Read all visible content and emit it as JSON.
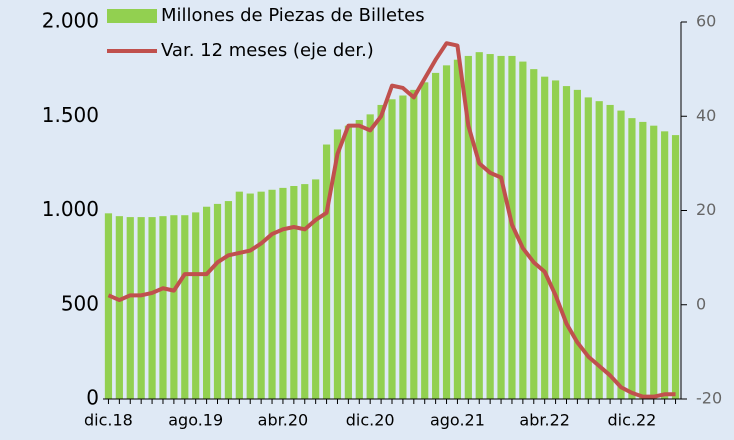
{
  "chart_data": {
    "type": "bar_line",
    "categories": [
      "dic.18",
      null,
      null,
      null,
      null,
      null,
      null,
      null,
      "ago.19",
      null,
      null,
      null,
      null,
      null,
      null,
      null,
      "abr.20",
      null,
      null,
      null,
      null,
      null,
      null,
      null,
      "dic.20",
      null,
      null,
      null,
      null,
      null,
      null,
      null,
      "ago.21",
      null,
      null,
      null,
      null,
      null,
      null,
      null,
      "abr.22",
      null,
      null,
      null,
      null,
      null,
      null,
      null,
      "dic.22",
      null,
      null,
      null,
      null
    ],
    "series": [
      {
        "name": "Millones de Piezas de Billetes",
        "color": "#92d050",
        "kind": "bar",
        "values": [
          985,
          970,
          965,
          965,
          965,
          970,
          975,
          975,
          990,
          1020,
          1035,
          1050,
          1100,
          1090,
          1100,
          1110,
          1120,
          1130,
          1140,
          1165,
          1350,
          1430,
          1450,
          1480,
          1510,
          1560,
          1590,
          1610,
          1640,
          1680,
          1730,
          1770,
          1800,
          1820,
          1840,
          1830,
          1820,
          1820,
          1790,
          1750,
          1710,
          1690,
          1660,
          1640,
          1600,
          1580,
          1560,
          1530,
          1490,
          1470,
          1450,
          1420,
          1400
        ]
      },
      {
        "name": "Var. 12 meses (eje der.)",
        "color": "#c0504d",
        "kind": "line",
        "axis": "y2",
        "values": [
          2,
          1,
          2,
          2,
          2.5,
          3.5,
          3,
          6.5,
          6.5,
          6.5,
          9,
          10.5,
          11,
          11.5,
          13,
          15,
          16,
          16.5,
          16,
          18,
          19.5,
          32,
          38,
          38,
          37,
          40,
          46.5,
          46,
          44,
          48,
          52,
          55.5,
          55,
          38,
          30,
          28,
          27,
          17,
          12,
          9,
          7,
          2,
          -4,
          -8,
          -11,
          -13,
          -15,
          -17.5,
          -18.7,
          -19.5,
          -19.5,
          -19,
          -19
        ]
      }
    ],
    "ylim": [
      0,
      2000
    ],
    "yticks": [
      0,
      500,
      {
        "value": 1000,
        "label": "1.000"
      },
      {
        "value": 1500,
        "label": "1.500"
      },
      {
        "value": 2000,
        "label": "2.000"
      }
    ],
    "y2lim": [
      -20,
      60
    ],
    "y2ticks": [
      -20,
      0,
      20,
      40,
      60
    ]
  }
}
